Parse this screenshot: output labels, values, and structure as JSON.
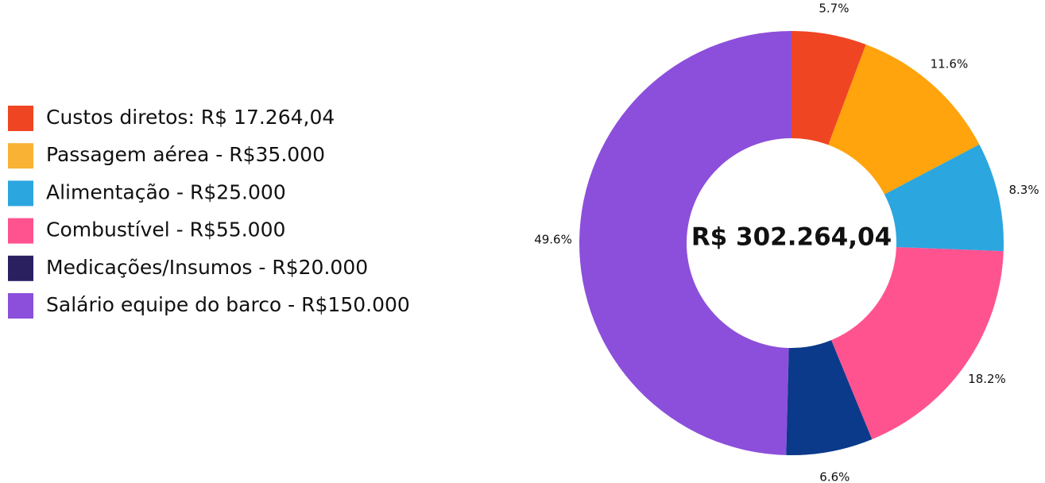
{
  "chart_data": {
    "type": "donut",
    "center_label": "R$ 302.264,04",
    "categories": [
      "Custos diretos: R$ 17.264,04",
      "Passagem aérea - R$35.000",
      "Alimentação - R$25.000",
      "Combustível - R$55.000",
      "Medicações/Insumos - R$20.000",
      "Salário equipe do barco - R$150.000"
    ],
    "values": [
      5.7,
      11.6,
      8.3,
      18.2,
      6.6,
      49.6
    ],
    "value_labels": [
      "5.7%",
      "11.6%",
      "8.3%",
      "18.2%",
      "6.6%",
      "49.6%"
    ],
    "colors": [
      "#f04523",
      "#ffa40c",
      "#2ba6df",
      "#ff5390",
      "#0b3a8a",
      "#8c4fdb"
    ],
    "legend_colors": [
      "#f04523",
      "#f9b233",
      "#2ba6df",
      "#ff5390",
      "#2a2060",
      "#8c4fdb"
    ],
    "legend": "left"
  }
}
